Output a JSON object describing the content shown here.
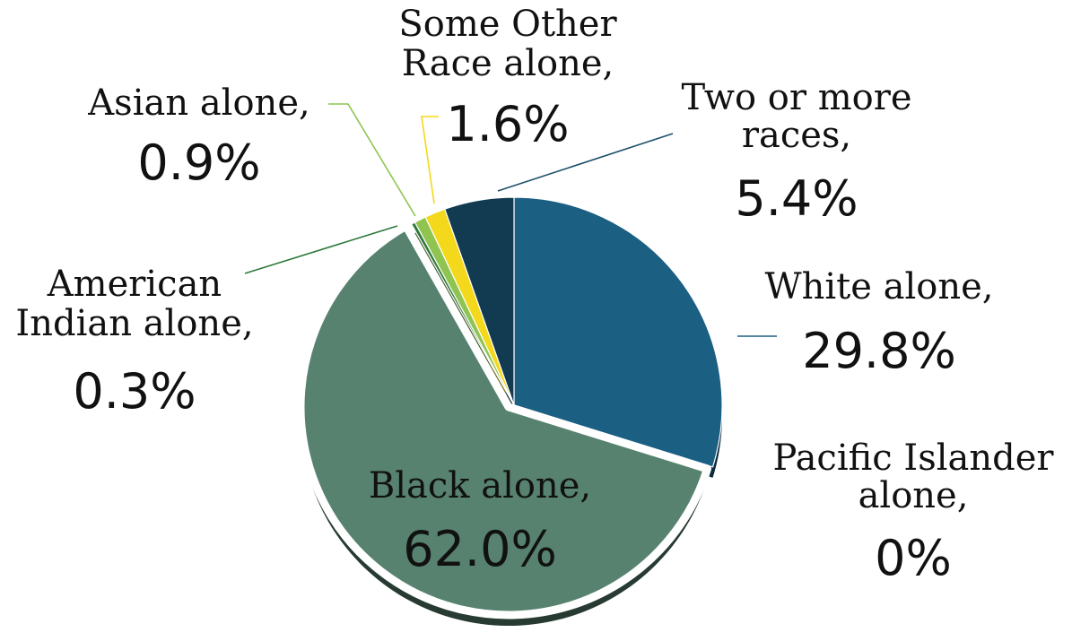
{
  "chart_data": {
    "type": "pie",
    "slices": [
      {
        "name_lines": [
          "White alone,"
        ],
        "label": "White alone",
        "value": 29.8,
        "value_text": "29.8%",
        "color": "#1b5f82"
      },
      {
        "name_lines": [
          "Pacific Islander",
          "alone,"
        ],
        "label": "Pacific Islander alone",
        "value": 0,
        "value_text": "0%",
        "color": "#1b5f82"
      },
      {
        "name_lines": [
          "Black alone,"
        ],
        "label": "Black alone",
        "value": 62.0,
        "value_text": "62.0%",
        "color": "#578270"
      },
      {
        "name_lines": [
          "American",
          "Indian alone,"
        ],
        "label": "American Indian alone",
        "value": 0.3,
        "value_text": "0.3%",
        "color": "#2e7a3c"
      },
      {
        "name_lines": [
          "Asian alone,"
        ],
        "label": "Asian alone",
        "value": 0.9,
        "value_text": "0.9%",
        "color": "#8fc451"
      },
      {
        "name_lines": [
          "Some Other",
          "Race alone,"
        ],
        "label": "Some Other Race alone",
        "value": 1.6,
        "value_text": "1.6%",
        "color": "#f4d81c"
      },
      {
        "name_lines": [
          "Two or more",
          "races,"
        ],
        "label": "Two or more races",
        "value": 5.4,
        "value_text": "5.4%",
        "color": "#123a51"
      }
    ]
  }
}
